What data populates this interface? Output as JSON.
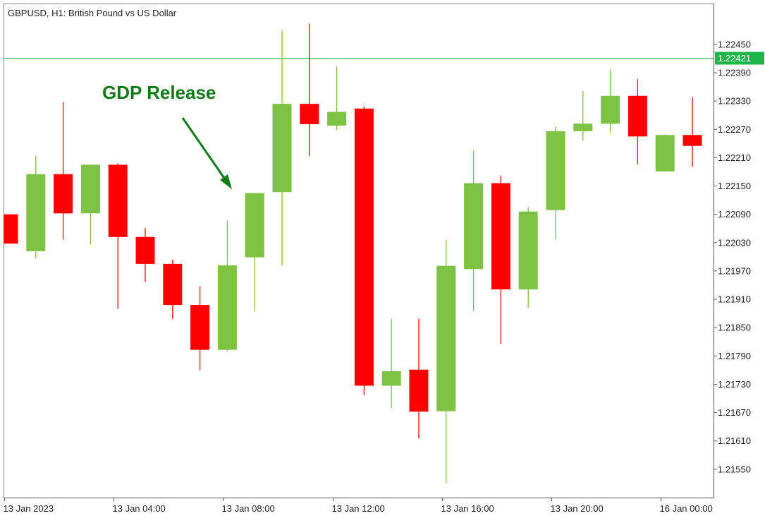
{
  "chart_data": {
    "type": "candlestick",
    "title": "GBPUSD, H1:  British Pound vs US Dollar",
    "symbol": "GBPUSD",
    "timeframe": "H1",
    "description": "British Pound vs US Dollar",
    "ylim": [
      1.2149,
      1.22535
    ],
    "y_ticks": [
      "1.22450",
      "1.22390",
      "1.22330",
      "1.22270",
      "1.22210",
      "1.22150",
      "1.22090",
      "1.22030",
      "1.21970",
      "1.21910",
      "1.21850",
      "1.21790",
      "1.21730",
      "1.21670",
      "1.21610",
      "1.21550"
    ],
    "x_ticks": [
      {
        "label": "13 Jan 2023",
        "index": 0
      },
      {
        "label": "13 Jan 04:00",
        "index": 4
      },
      {
        "label": "13 Jan 08:00",
        "index": 8
      },
      {
        "label": "13 Jan 12:00",
        "index": 12
      },
      {
        "label": "13 Jan 16:00",
        "index": 16
      },
      {
        "label": "13 Jan 20:00",
        "index": 20
      },
      {
        "label": "16 Jan 00:00",
        "index": 24
      }
    ],
    "current_price": "1.22421",
    "current_price_value": 1.22421,
    "annotation": {
      "text": "GDP Release",
      "candle_index": 8
    },
    "candles": [
      {
        "open": 1.2209,
        "high": 1.2209,
        "low": 1.22028,
        "close": 1.22028
      },
      {
        "open": 1.22012,
        "high": 1.22214,
        "low": 1.21997,
        "close": 1.22175
      },
      {
        "open": 1.22175,
        "high": 1.22328,
        "low": 1.22037,
        "close": 1.22092
      },
      {
        "open": 1.22092,
        "high": 1.22195,
        "low": 1.22026,
        "close": 1.22195
      },
      {
        "open": 1.22195,
        "high": 1.22198,
        "low": 1.2189,
        "close": 1.22042
      },
      {
        "open": 1.22042,
        "high": 1.22061,
        "low": 1.21947,
        "close": 1.21985
      },
      {
        "open": 1.21985,
        "high": 1.21994,
        "low": 1.21869,
        "close": 1.21898
      },
      {
        "open": 1.21898,
        "high": 1.21937,
        "low": 1.2176,
        "close": 1.21803
      },
      {
        "open": 1.21803,
        "high": 1.22077,
        "low": 1.21801,
        "close": 1.21982
      },
      {
        "open": 1.21999,
        "high": 1.22135,
        "low": 1.21885,
        "close": 1.22135
      },
      {
        "open": 1.22137,
        "high": 1.2248,
        "low": 1.21981,
        "close": 1.22324
      },
      {
        "open": 1.22324,
        "high": 1.22494,
        "low": 1.22213,
        "close": 1.22281
      },
      {
        "open": 1.22278,
        "high": 1.22403,
        "low": 1.22268,
        "close": 1.22307
      },
      {
        "open": 1.22314,
        "high": 1.22319,
        "low": 1.21707,
        "close": 1.21727
      },
      {
        "open": 1.21727,
        "high": 1.21869,
        "low": 1.2168,
        "close": 1.21758
      },
      {
        "open": 1.21761,
        "high": 1.21869,
        "low": 1.21615,
        "close": 1.21672
      },
      {
        "open": 1.21673,
        "high": 1.22036,
        "low": 1.2152,
        "close": 1.21981
      },
      {
        "open": 1.21974,
        "high": 1.22225,
        "low": 1.21885,
        "close": 1.22156
      },
      {
        "open": 1.22156,
        "high": 1.22172,
        "low": 1.21815,
        "close": 1.21931
      },
      {
        "open": 1.21931,
        "high": 1.22105,
        "low": 1.21891,
        "close": 1.22096
      },
      {
        "open": 1.22099,
        "high": 1.22276,
        "low": 1.22037,
        "close": 1.22266
      },
      {
        "open": 1.22266,
        "high": 1.22351,
        "low": 1.22245,
        "close": 1.22282
      },
      {
        "open": 1.22282,
        "high": 1.22396,
        "low": 1.22263,
        "close": 1.22341
      },
      {
        "open": 1.22341,
        "high": 1.22376,
        "low": 1.22196,
        "close": 1.22255
      },
      {
        "open": 1.22181,
        "high": 1.22259,
        "low": 1.22181,
        "close": 1.22258
      },
      {
        "open": 1.22258,
        "high": 1.22338,
        "low": 1.22191,
        "close": 1.22235
      }
    ],
    "colors": {
      "bull": "#7dc242",
      "bear": "#ff0000",
      "price_line": "#2fb34a",
      "price_label_bg": "#1eb54a",
      "annotation": "#0f7a16",
      "axis": "#555555",
      "text": "#1f1f1f"
    },
    "grid": false
  }
}
